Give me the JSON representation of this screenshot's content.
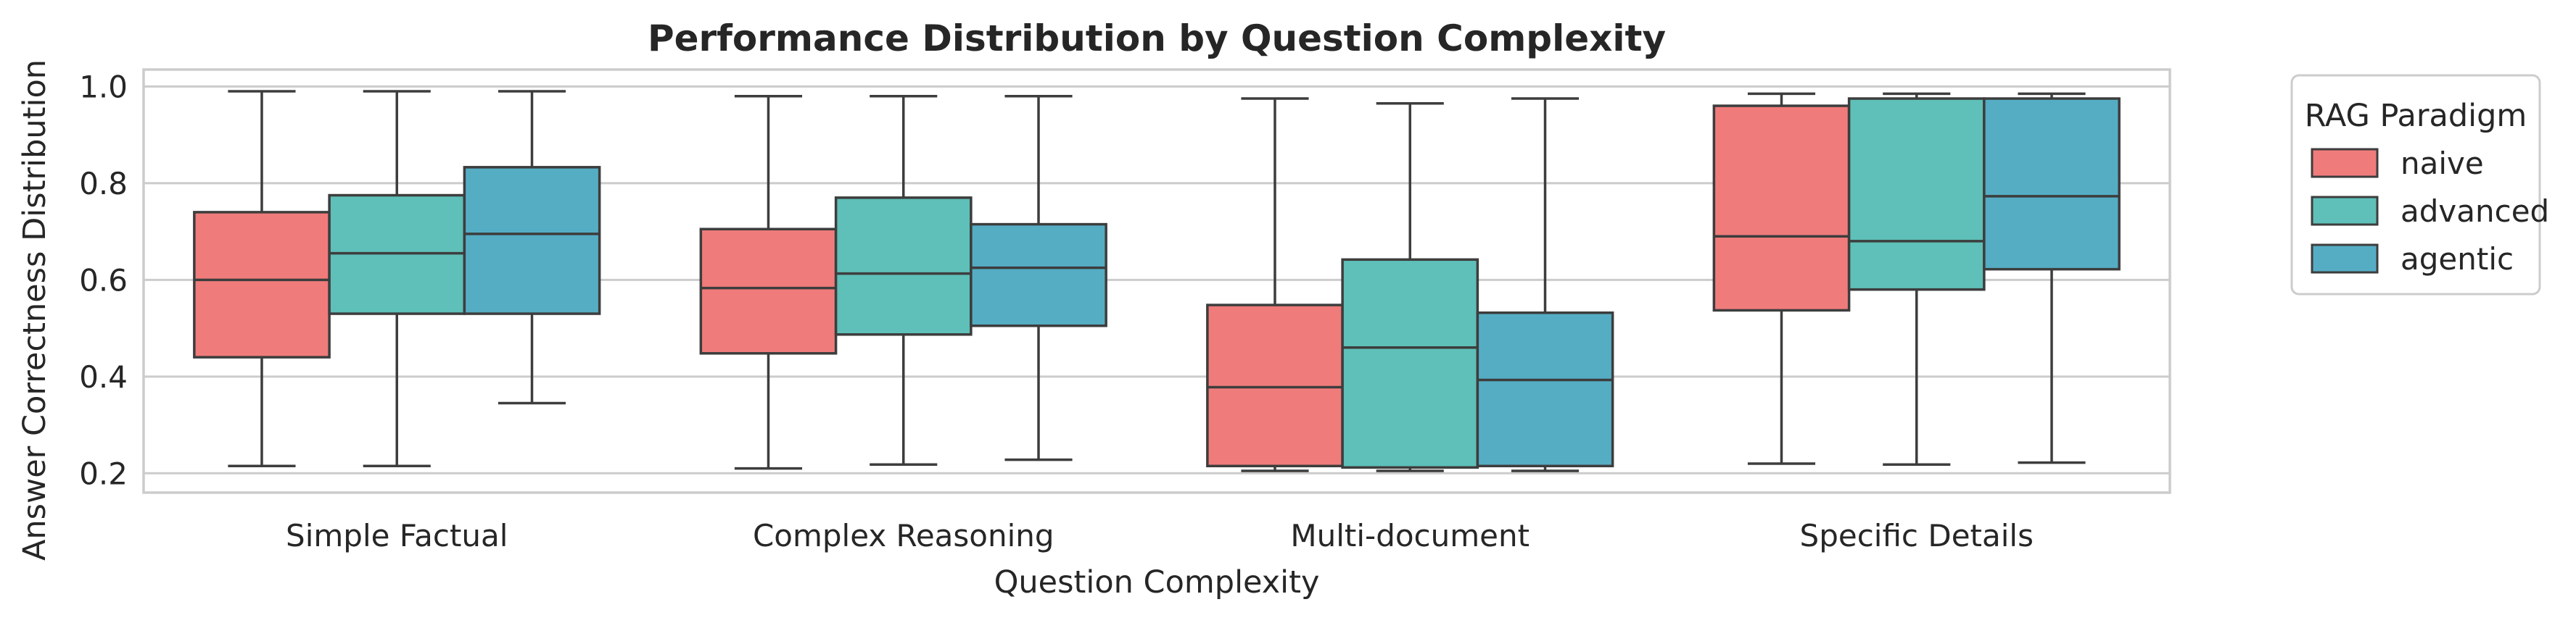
{
  "chart_data": {
    "type": "box",
    "title": "Performance Distribution by Question Complexity",
    "xlabel": "Question Complexity",
    "ylabel": "Answer Correctness Distribution",
    "ylim": [
      0.16,
      1.035
    ],
    "yticks": [
      0.2,
      0.4,
      0.6,
      0.8,
      1.0
    ],
    "ytick_labels": [
      "0.2",
      "0.4",
      "0.6",
      "0.8",
      "1.0"
    ],
    "grid": true,
    "categories": [
      "Simple Factual",
      "Complex Reasoning",
      "Multi-document",
      "Specific Details"
    ],
    "legend": {
      "title": "RAG Paradigm",
      "placement": "outside-right-top"
    },
    "series": [
      {
        "name": "naive",
        "color": "#f07b7b",
        "boxes": [
          {
            "whislo": 0.215,
            "q1": 0.44,
            "med": 0.6,
            "q3": 0.74,
            "whishi": 0.99
          },
          {
            "whislo": 0.21,
            "q1": 0.448,
            "med": 0.583,
            "q3": 0.705,
            "whishi": 0.98
          },
          {
            "whislo": 0.205,
            "q1": 0.215,
            "med": 0.378,
            "q3": 0.548,
            "whishi": 0.975
          },
          {
            "whislo": 0.22,
            "q1": 0.537,
            "med": 0.69,
            "q3": 0.96,
            "whishi": 0.985
          }
        ]
      },
      {
        "name": "advanced",
        "color": "#5ec0b8",
        "boxes": [
          {
            "whislo": 0.215,
            "q1": 0.53,
            "med": 0.655,
            "q3": 0.775,
            "whishi": 0.99
          },
          {
            "whislo": 0.218,
            "q1": 0.487,
            "med": 0.613,
            "q3": 0.77,
            "whishi": 0.98
          },
          {
            "whislo": 0.205,
            "q1": 0.212,
            "med": 0.46,
            "q3": 0.642,
            "whishi": 0.965
          },
          {
            "whislo": 0.218,
            "q1": 0.58,
            "med": 0.68,
            "q3": 0.975,
            "whishi": 0.985
          }
        ]
      },
      {
        "name": "agentic",
        "color": "#55adc4",
        "boxes": [
          {
            "whislo": 0.345,
            "q1": 0.53,
            "med": 0.695,
            "q3": 0.833,
            "whishi": 0.99
          },
          {
            "whislo": 0.228,
            "q1": 0.505,
            "med": 0.625,
            "q3": 0.715,
            "whishi": 0.98
          },
          {
            "whislo": 0.205,
            "q1": 0.215,
            "med": 0.393,
            "q3": 0.532,
            "whishi": 0.975
          },
          {
            "whislo": 0.222,
            "q1": 0.622,
            "med": 0.773,
            "q3": 0.975,
            "whishi": 0.985
          }
        ]
      }
    ]
  }
}
